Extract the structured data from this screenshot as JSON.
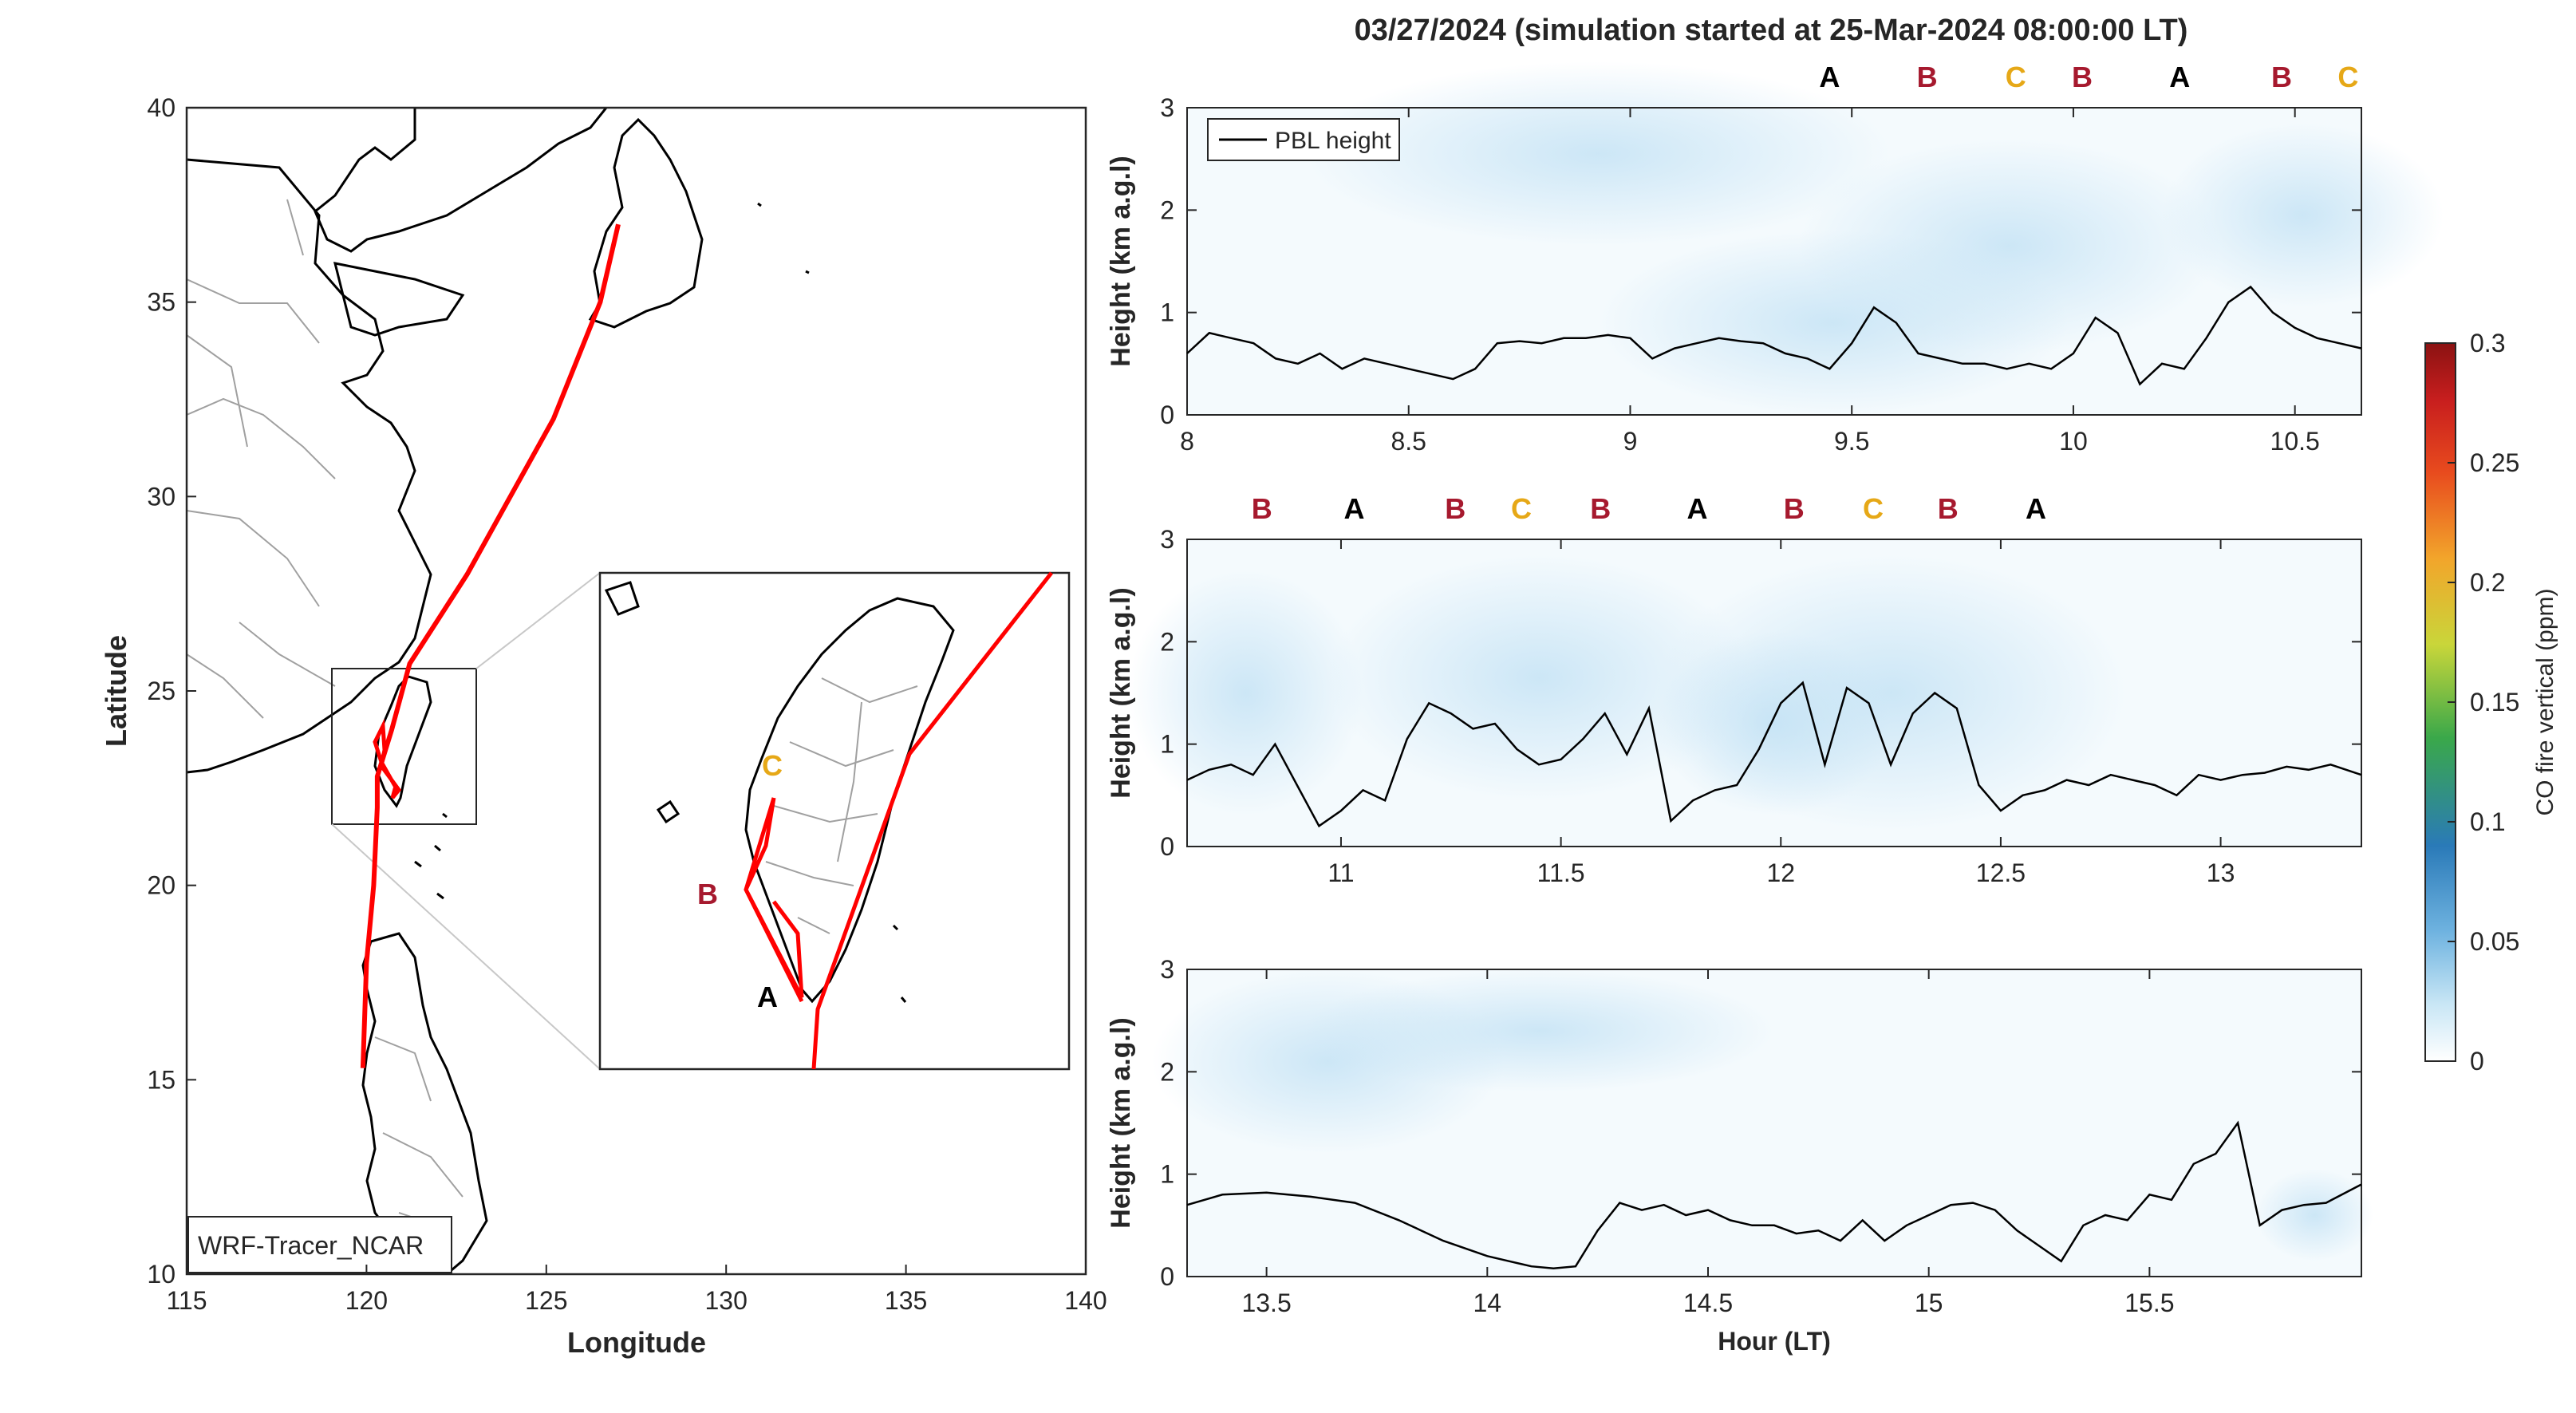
{
  "figure": {
    "suptitle": "03/27/2024 (simulation started at 25-Mar-2024 08:00:00 LT)"
  },
  "map": {
    "xlabel": "Longitude",
    "ylabel": "Latitude",
    "xticks": [
      115,
      120,
      125,
      130,
      135,
      140
    ],
    "yticks": [
      10,
      15,
      20,
      25,
      30,
      35,
      40
    ],
    "xlim": [
      115,
      140
    ],
    "ylim": [
      10,
      40
    ],
    "model_label": "WRF-Tracer_NCAR",
    "track_color": "#ff0000",
    "flight_track": [
      [
        127.0,
        37.0
      ],
      [
        126.5,
        35.0
      ],
      [
        125.2,
        32.0
      ],
      [
        124.0,
        30.0
      ],
      [
        122.8,
        28.0
      ],
      [
        121.2,
        25.7
      ],
      [
        120.7,
        24.0
      ],
      [
        120.3,
        22.8
      ],
      [
        120.3,
        22.0
      ],
      [
        120.2,
        20.0
      ],
      [
        120.0,
        18.0
      ],
      [
        119.9,
        15.3
      ]
    ],
    "inset": {
      "labels": [
        {
          "text": "C",
          "color": "#e6a817"
        },
        {
          "text": "B",
          "color": "#a6192e"
        },
        {
          "text": "A",
          "color": "#000000"
        }
      ]
    }
  },
  "colorbar": {
    "label": "CO fire vertical (ppm)",
    "ticks": [
      "0",
      "0.05",
      "0.1",
      "0.15",
      "0.2",
      "0.25",
      "0.3"
    ],
    "range": [
      0,
      0.3
    ]
  },
  "panels": [
    {
      "ylabel": "Height (km a.g.l)",
      "xlim": [
        8,
        10.65
      ],
      "ylim": [
        0,
        3
      ],
      "xticks": [
        "8",
        "8.5",
        "9",
        "9.5",
        "10",
        "10.5"
      ],
      "yticks": [
        "0",
        "1",
        "2",
        "3"
      ],
      "legend": "PBL height",
      "legend_position": "top-left",
      "markers": [
        {
          "x": 9.45,
          "text": "A",
          "color": "#000000"
        },
        {
          "x": 9.67,
          "text": "B",
          "color": "#a6192e"
        },
        {
          "x": 9.87,
          "text": "C",
          "color": "#e6a817"
        },
        {
          "x": 10.02,
          "text": "B",
          "color": "#a6192e"
        },
        {
          "x": 10.24,
          "text": "A",
          "color": "#000000"
        },
        {
          "x": 10.47,
          "text": "B",
          "color": "#a6192e"
        },
        {
          "x": 10.62,
          "text": "C",
          "color": "#e6a817"
        }
      ]
    },
    {
      "ylabel": "Height (km a.g.l)",
      "xlim": [
        10.65,
        13.32
      ],
      "ylim": [
        0,
        3
      ],
      "xticks": [
        "11",
        "11.5",
        "12",
        "12.5",
        "13"
      ],
      "yticks": [
        "0",
        "1",
        "2",
        "3"
      ],
      "markers": [
        {
          "x": 10.82,
          "text": "B",
          "color": "#a6192e"
        },
        {
          "x": 11.03,
          "text": "A",
          "color": "#000000"
        },
        {
          "x": 11.26,
          "text": "B",
          "color": "#a6192e"
        },
        {
          "x": 11.41,
          "text": "C",
          "color": "#e6a817"
        },
        {
          "x": 11.59,
          "text": "B",
          "color": "#a6192e"
        },
        {
          "x": 11.81,
          "text": "A",
          "color": "#000000"
        },
        {
          "x": 12.03,
          "text": "B",
          "color": "#a6192e"
        },
        {
          "x": 12.21,
          "text": "C",
          "color": "#e6a817"
        },
        {
          "x": 12.38,
          "text": "B",
          "color": "#a6192e"
        },
        {
          "x": 12.58,
          "text": "A",
          "color": "#000000"
        }
      ]
    },
    {
      "ylabel": "Height (km a.g.l)",
      "xlabel": "Hour (LT)",
      "xlim": [
        13.32,
        15.98
      ],
      "ylim": [
        0,
        3
      ],
      "xticks": [
        "13.5",
        "14",
        "14.5",
        "15",
        "15.5"
      ],
      "yticks": [
        "0",
        "1",
        "2",
        "3"
      ],
      "markers": []
    }
  ],
  "chart_data": [
    {
      "type": "line",
      "series": [
        {
          "name": "PBL height",
          "color": "#000000",
          "x": [
            8.0,
            8.05,
            8.1,
            8.15,
            8.2,
            8.25,
            8.3,
            8.35,
            8.4,
            8.45,
            8.5,
            8.55,
            8.6,
            8.65,
            8.7,
            8.75,
            8.8,
            8.85,
            8.9,
            8.95,
            9.0,
            9.05,
            9.1,
            9.15,
            9.2,
            9.25,
            9.3,
            9.35,
            9.4,
            9.45,
            9.5,
            9.55,
            9.6,
            9.65,
            9.7,
            9.75,
            9.8,
            9.85,
            9.9,
            9.95,
            10.0,
            10.05,
            10.1,
            10.15,
            10.2,
            10.25,
            10.3,
            10.35,
            10.4,
            10.45,
            10.5,
            10.55,
            10.6,
            10.65
          ],
          "y": [
            0.6,
            0.8,
            0.75,
            0.7,
            0.55,
            0.5,
            0.6,
            0.45,
            0.55,
            0.5,
            0.45,
            0.4,
            0.35,
            0.45,
            0.7,
            0.72,
            0.7,
            0.75,
            0.75,
            0.78,
            0.75,
            0.55,
            0.65,
            0.7,
            0.75,
            0.72,
            0.7,
            0.6,
            0.55,
            0.45,
            0.7,
            1.05,
            0.9,
            0.6,
            0.55,
            0.5,
            0.5,
            0.45,
            0.5,
            0.45,
            0.6,
            0.95,
            0.8,
            0.3,
            0.5,
            0.45,
            0.75,
            1.1,
            1.25,
            1.0,
            0.85,
            0.75,
            0.7,
            0.65
          ]
        }
      ]
    },
    {
      "type": "line",
      "series": [
        {
          "name": "PBL height",
          "color": "#000000",
          "x": [
            10.65,
            10.7,
            10.75,
            10.8,
            10.85,
            10.9,
            10.95,
            11.0,
            11.05,
            11.1,
            11.15,
            11.2,
            11.25,
            11.3,
            11.35,
            11.4,
            11.45,
            11.5,
            11.55,
            11.6,
            11.65,
            11.7,
            11.75,
            11.8,
            11.85,
            11.9,
            11.95,
            12.0,
            12.05,
            12.1,
            12.15,
            12.2,
            12.25,
            12.3,
            12.35,
            12.4,
            12.45,
            12.5,
            12.55,
            12.6,
            12.65,
            12.7,
            12.75,
            12.8,
            12.85,
            12.9,
            12.95,
            13.0,
            13.05,
            13.1,
            13.15,
            13.2,
            13.25,
            13.32
          ],
          "y": [
            0.65,
            0.75,
            0.8,
            0.7,
            1.0,
            0.6,
            0.2,
            0.35,
            0.55,
            0.45,
            1.05,
            1.4,
            1.3,
            1.15,
            1.2,
            0.95,
            0.8,
            0.85,
            1.05,
            1.3,
            0.9,
            1.35,
            0.25,
            0.45,
            0.55,
            0.6,
            0.95,
            1.4,
            1.6,
            0.8,
            1.55,
            1.4,
            0.8,
            1.3,
            1.5,
            1.35,
            0.6,
            0.35,
            0.5,
            0.55,
            0.65,
            0.6,
            0.7,
            0.65,
            0.6,
            0.5,
            0.7,
            0.65,
            0.7,
            0.72,
            0.78,
            0.75,
            0.8,
            0.7
          ]
        }
      ]
    },
    {
      "type": "line",
      "series": [
        {
          "name": "PBL height",
          "color": "#000000",
          "x": [
            13.32,
            13.4,
            13.5,
            13.6,
            13.7,
            13.8,
            13.9,
            14.0,
            14.05,
            14.1,
            14.15,
            14.2,
            14.25,
            14.3,
            14.35,
            14.4,
            14.45,
            14.5,
            14.55,
            14.6,
            14.65,
            14.7,
            14.75,
            14.8,
            14.85,
            14.9,
            14.95,
            15.0,
            15.05,
            15.1,
            15.15,
            15.2,
            15.25,
            15.3,
            15.35,
            15.4,
            15.45,
            15.5,
            15.55,
            15.6,
            15.65,
            15.7,
            15.75,
            15.8,
            15.85,
            15.9,
            15.98
          ],
          "y": [
            0.7,
            0.8,
            0.82,
            0.78,
            0.72,
            0.55,
            0.35,
            0.2,
            0.15,
            0.1,
            0.08,
            0.1,
            0.45,
            0.72,
            0.65,
            0.7,
            0.6,
            0.65,
            0.55,
            0.5,
            0.5,
            0.42,
            0.45,
            0.35,
            0.55,
            0.35,
            0.5,
            0.6,
            0.7,
            0.72,
            0.65,
            0.45,
            0.3,
            0.15,
            0.5,
            0.6,
            0.55,
            0.8,
            0.75,
            1.1,
            1.2,
            1.5,
            0.5,
            0.65,
            0.7,
            0.72,
            0.9
          ]
        }
      ]
    }
  ]
}
